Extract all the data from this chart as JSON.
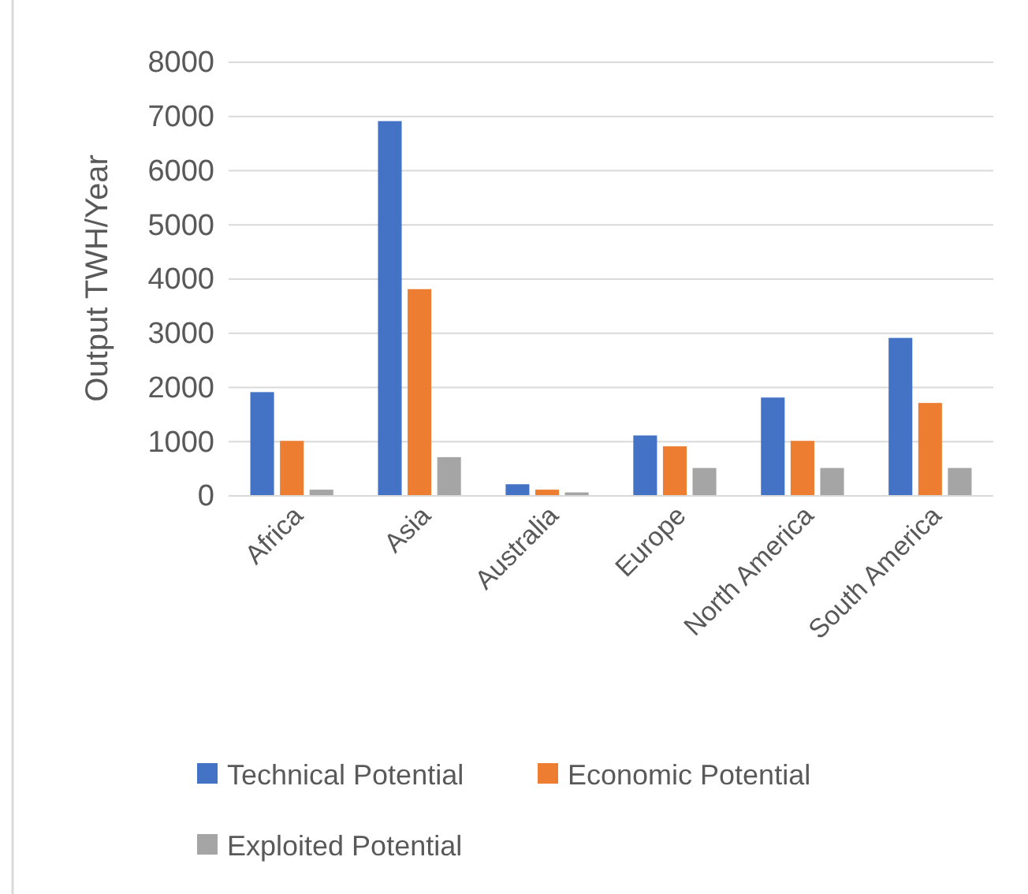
{
  "chart_data": {
    "type": "bar",
    "ylabel": "Output TWH/Year",
    "categories": [
      "Africa",
      "Asia",
      "Australia",
      "Europe",
      "North America",
      "South America"
    ],
    "series": [
      {
        "name": "Technical Potential",
        "color": "#4472c4",
        "values": [
          1900,
          6900,
          200,
          1100,
          1800,
          2900
        ]
      },
      {
        "name": "Economic Potential",
        "color": "#ed7d31",
        "values": [
          1000,
          3800,
          100,
          900,
          1000,
          1700
        ]
      },
      {
        "name": "Exploited Potential",
        "color": "#a5a5a5",
        "values": [
          100,
          700,
          50,
          500,
          500,
          500
        ]
      }
    ],
    "ylim": [
      0,
      8000
    ],
    "yticks": [
      0,
      1000,
      2000,
      3000,
      4000,
      5000,
      6000,
      7000,
      8000
    ],
    "grid": "y",
    "legend": "bottom"
  }
}
